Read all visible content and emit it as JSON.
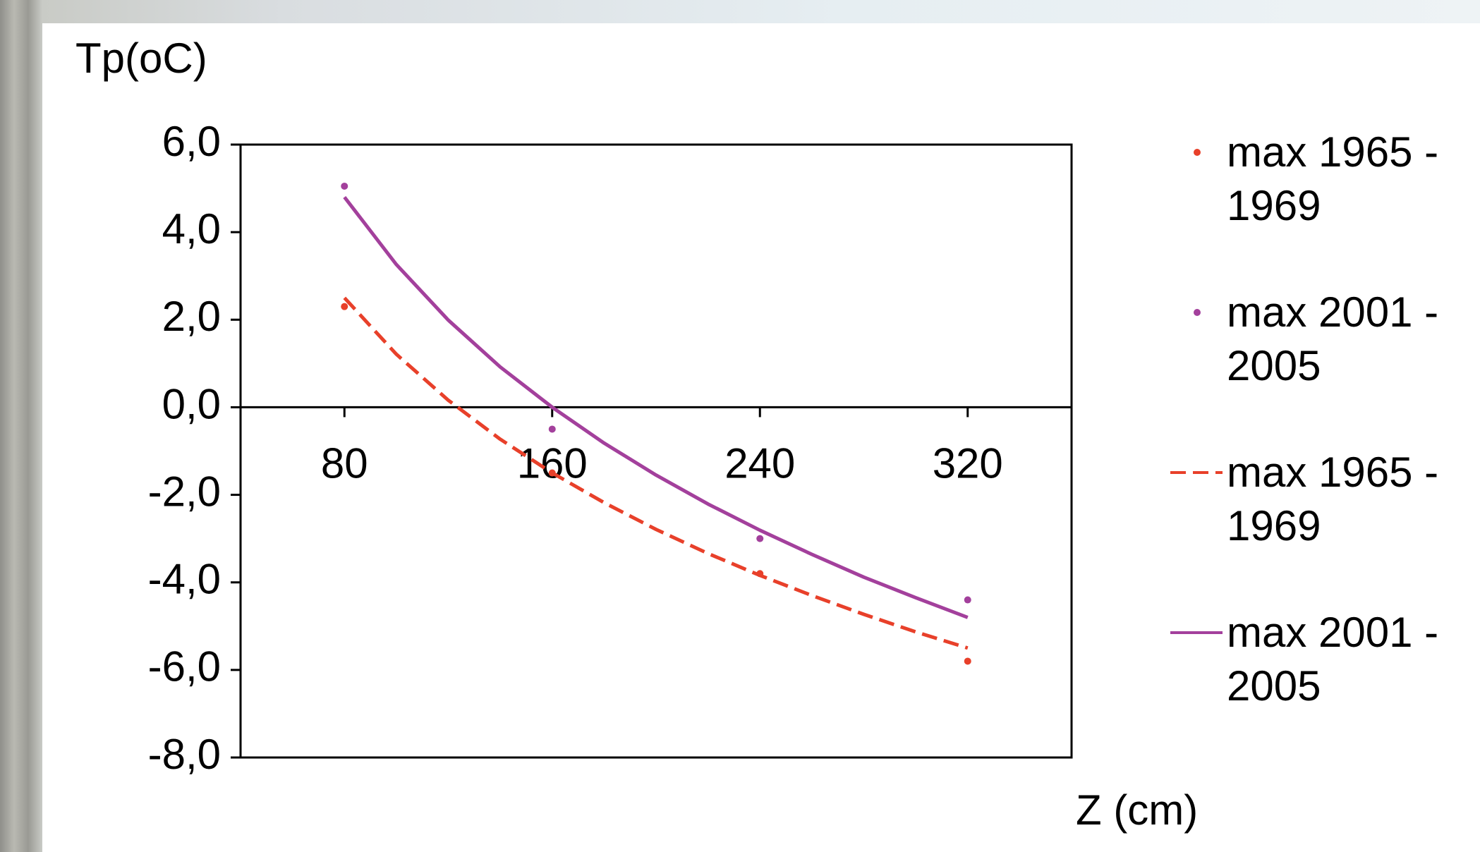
{
  "chart_data": {
    "type": "scatter",
    "y_label": "Tp(oC)",
    "x_label": "Z (cm)",
    "xlim": [
      40,
      360
    ],
    "xticks": [
      80,
      160,
      240,
      320
    ],
    "ylim": [
      -8,
      6
    ],
    "yticks": [
      {
        "value": 6,
        "label": "6,0"
      },
      {
        "value": 4,
        "label": "4,0"
      },
      {
        "value": 2,
        "label": "2,0"
      },
      {
        "value": 0,
        "label": "0,0"
      },
      {
        "value": -2,
        "label": "-2,0"
      },
      {
        "value": -4,
        "label": "-4,0"
      },
      {
        "value": -6,
        "label": "-6,0"
      },
      {
        "value": -8,
        "label": "-8,0"
      }
    ],
    "series": [
      {
        "name": "max 1965 - 1969",
        "color": "#e8402a",
        "style": "marker",
        "x": [
          80,
          160,
          240,
          320
        ],
        "values": [
          2.3,
          -1.5,
          -3.8,
          -5.8
        ]
      },
      {
        "name": "max 2001 - 2005",
        "color": "#a3409c",
        "style": "marker",
        "x": [
          80,
          160,
          240,
          320
        ],
        "values": [
          5.05,
          -0.5,
          -3.0,
          -4.4
        ]
      },
      {
        "name": "max 1965 - 1969",
        "color": "#e8402a",
        "style": "dashed",
        "x": [
          80,
          100,
          120,
          140,
          160,
          180,
          200,
          220,
          240,
          260,
          280,
          300,
          320
        ],
        "values": [
          2.5,
          1.21,
          0.16,
          -0.73,
          -1.5,
          -2.18,
          -2.79,
          -3.34,
          -3.84,
          -4.3,
          -4.73,
          -5.13,
          -5.5
        ]
      },
      {
        "name": "max 2001 - 2005",
        "color": "#a3409c",
        "style": "solid",
        "x": [
          80,
          100,
          120,
          140,
          160,
          180,
          200,
          220,
          240,
          260,
          280,
          300,
          320
        ],
        "values": [
          4.8,
          3.26,
          1.99,
          0.92,
          0.0,
          -0.82,
          -1.55,
          -2.21,
          -2.81,
          -3.36,
          -3.88,
          -4.35,
          -4.8
        ]
      }
    ]
  }
}
